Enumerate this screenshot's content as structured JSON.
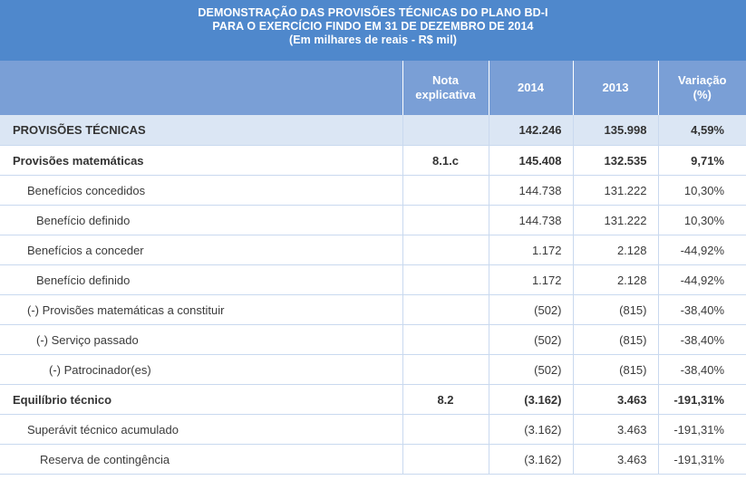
{
  "title": {
    "line1": "DEMONSTRAÇÃO DAS PROVISÕES TÉCNICAS DO PLANO BD-I",
    "line2": "PARA O EXERCÍCIO FINDO EM 31 DE DEZEMBRO DE 2014",
    "line3": "(Em milhares de reais - R$ mil)"
  },
  "headers": {
    "desc": "",
    "nota_line1": "Nota",
    "nota_line2": "explicativa",
    "y2014": "2014",
    "y2013": "2013",
    "var_line1": "Variação",
    "var_line2": "(%)"
  },
  "rows": [
    {
      "label": "PROVISÕES TÉCNICAS",
      "nota": "",
      "v2014": "142.246",
      "v2013": "135.998",
      "var": "4,59%"
    },
    {
      "label": "Provisões matemáticas",
      "nota": "8.1.c",
      "v2014": "145.408",
      "v2013": "132.535",
      "var": "9,71%"
    },
    {
      "label": "Benefícios concedidos",
      "nota": "",
      "v2014": "144.738",
      "v2013": "131.222",
      "var": "10,30%"
    },
    {
      "label": "Benefício definido",
      "nota": "",
      "v2014": "144.738",
      "v2013": "131.222",
      "var": "10,30%"
    },
    {
      "label": "Benefícios a conceder",
      "nota": "",
      "v2014": "1.172",
      "v2013": "2.128",
      "var": "-44,92%"
    },
    {
      "label": "Benefício definido",
      "nota": "",
      "v2014": "1.172",
      "v2013": "2.128",
      "var": "-44,92%"
    },
    {
      "label": "(-) Provisões matemáticas a constituir",
      "nota": "",
      "v2014": "(502)",
      "v2013": "(815)",
      "var": "-38,40%"
    },
    {
      "label": "(-) Serviço passado",
      "nota": "",
      "v2014": "(502)",
      "v2013": "(815)",
      "var": "-38,40%"
    },
    {
      "label": "(-) Patrocinador(es)",
      "nota": "",
      "v2014": "(502)",
      "v2013": "(815)",
      "var": "-38,40%"
    },
    {
      "label": "Equilíbrio técnico",
      "nota": "8.2",
      "v2014": "(3.162)",
      "v2013": "3.463",
      "var": "-191,31%"
    },
    {
      "label": "Superávit técnico acumulado",
      "nota": "",
      "v2014": "(3.162)",
      "v2013": "3.463",
      "var": "-191,31%"
    },
    {
      "label": "Reserva de contingência",
      "nota": "",
      "v2014": "(3.162)",
      "v2013": "3.463",
      "var": "-191,31%"
    }
  ]
}
